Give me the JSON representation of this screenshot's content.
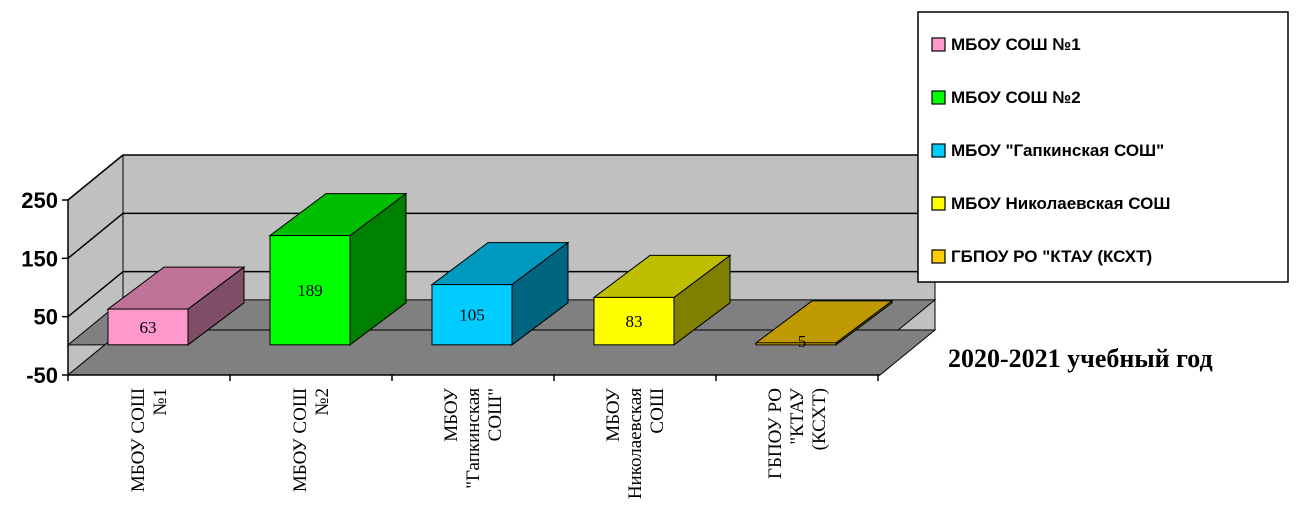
{
  "chart_data": {
    "type": "bar",
    "categories": [
      "МБОУ СОШ №1",
      "МБОУ СОШ №2",
      "МБОУ \"Гапкинская СОШ\"",
      "МБОУ Николаевская СОШ",
      "ГБПОУ РО \"КТАУ (КСХТ)"
    ],
    "category_tick_lines": [
      [
        "МБОУ СОШ",
        "№1"
      ],
      [
        "МБОУ СОШ",
        "№2"
      ],
      [
        "МБОУ",
        "\"Гапкинская",
        "СОШ\""
      ],
      [
        "МБОУ",
        "Николаевская",
        "СОШ"
      ],
      [
        "ГБПОУ РО",
        "\"КТАУ",
        "(КСХТ)"
      ]
    ],
    "values": [
      63,
      189,
      105,
      83,
      5
    ],
    "data_labels": [
      "63",
      "189",
      "105",
      "83",
      "5"
    ],
    "colors": [
      "#ff99cc",
      "#00ff00",
      "#00ccff",
      "#ffff00",
      "#ffcc00"
    ],
    "legend": [
      "МБОУ СОШ №1",
      "МБОУ СОШ №2",
      "МБОУ \"Гапкинская СОШ\"",
      "МБОУ Николаевская СОШ",
      "ГБПОУ РО \"КТАУ (КСХТ)"
    ],
    "legend_position": "top-right",
    "y_ticks": [
      "250",
      "150",
      "50",
      "-50"
    ],
    "y_tick_values": [
      250,
      150,
      50,
      -50
    ],
    "ylim": [
      -50,
      250
    ],
    "grid": true,
    "style": "3d",
    "annotation": "2020-2021 учебный год"
  }
}
